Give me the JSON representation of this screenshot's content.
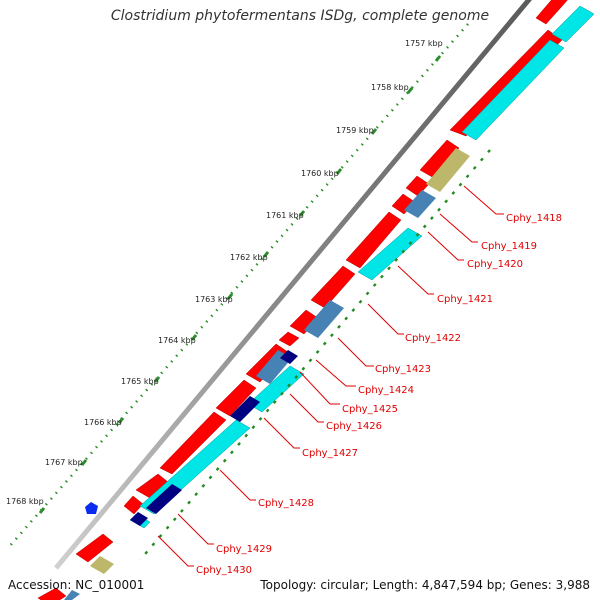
{
  "header": {
    "title": "Clostridium phytofermentans ISDg, complete genome"
  },
  "footer": {
    "accession": "Accession: NC_010001",
    "summary": "Topology: circular; Length: 4,847,594 bp; Genes: 3,988"
  },
  "ruler": {
    "ticks": [
      "1757 kbp",
      "1758 kbp",
      "1759 kbp",
      "1760 kbp",
      "1761 kbp",
      "1762 kbp",
      "1763 kbp",
      "1764 kbp",
      "1765 kbp",
      "1766 kbp",
      "1767 kbp",
      "1768 kbp"
    ]
  },
  "genes": [
    {
      "label": "Cphy_1418"
    },
    {
      "label": "Cphy_1419"
    },
    {
      "label": "Cphy_1420"
    },
    {
      "label": "Cphy_1421"
    },
    {
      "label": "Cphy_1422"
    },
    {
      "label": "Cphy_1423"
    },
    {
      "label": "Cphy_1424"
    },
    {
      "label": "Cphy_1425"
    },
    {
      "label": "Cphy_1426"
    },
    {
      "label": "Cphy_1427"
    },
    {
      "label": "Cphy_1428"
    },
    {
      "label": "Cphy_1429"
    },
    {
      "label": "Cphy_1430"
    }
  ],
  "colors": {
    "cds_forward": "#ff0000",
    "cds_reverse": "#00e5e5",
    "gene_label": "#e00000",
    "khaki_feature": "#bdb76b",
    "steelblue_feature": "#4682b4",
    "navy_feature": "#000080",
    "ruler_dots": "#228b22",
    "backbone": "#8a8a8a"
  }
}
